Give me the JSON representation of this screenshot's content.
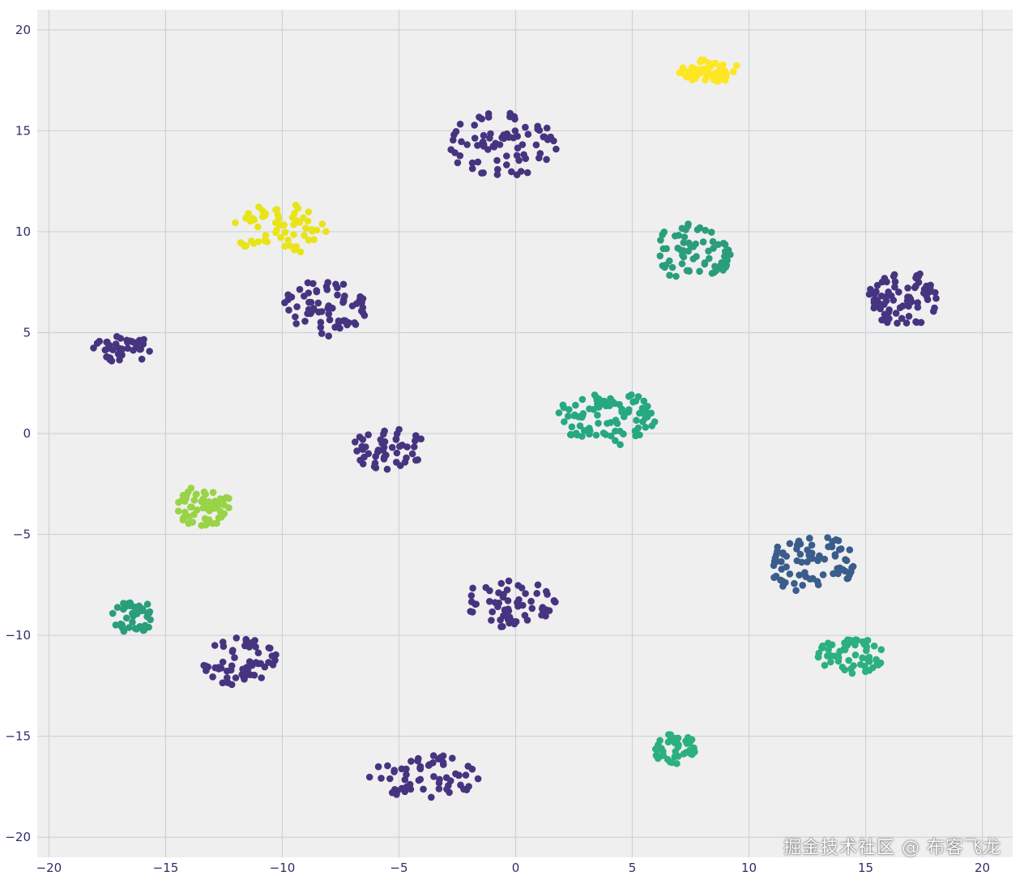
{
  "chart_data": {
    "type": "scatter",
    "title": "",
    "xlabel": "",
    "ylabel": "",
    "xlim": [
      -20.5,
      21.3
    ],
    "ylim": [
      -21.0,
      21.0
    ],
    "x_ticks": [
      -20,
      -15,
      -10,
      -5,
      0,
      5,
      10,
      15,
      20
    ],
    "y_ticks": [
      -20,
      -15,
      -10,
      -5,
      0,
      5,
      10,
      15,
      20
    ],
    "grid": true,
    "background_color": "#efefef",
    "grid_color": "#cfd3d6",
    "colormap": "viridis",
    "clusters": [
      {
        "color": "#463480",
        "center": [
          -0.6,
          14.3
        ],
        "spread": [
          2.4,
          1.6
        ],
        "count": 80
      },
      {
        "color": "#fde725",
        "center": [
          8.3,
          18.0
        ],
        "spread": [
          1.3,
          0.6
        ],
        "count": 60
      },
      {
        "color": "#e8e419",
        "center": [
          -10.1,
          10.1
        ],
        "spread": [
          2.0,
          1.3
        ],
        "count": 60
      },
      {
        "color": "#463480",
        "center": [
          -8.2,
          6.2
        ],
        "spread": [
          1.8,
          1.4
        ],
        "count": 70
      },
      {
        "color": "#2a9d7a",
        "center": [
          7.6,
          9.0
        ],
        "spread": [
          1.8,
          1.4
        ],
        "count": 70
      },
      {
        "color": "#463480",
        "center": [
          16.6,
          6.7
        ],
        "spread": [
          1.5,
          1.4
        ],
        "count": 80
      },
      {
        "color": "#463480",
        "center": [
          -16.8,
          4.2
        ],
        "spread": [
          1.3,
          0.7
        ],
        "count": 40
      },
      {
        "color": "#26a881",
        "center": [
          4.0,
          0.8
        ],
        "spread": [
          2.2,
          1.4
        ],
        "count": 90
      },
      {
        "color": "#463480",
        "center": [
          -5.4,
          -0.8
        ],
        "spread": [
          1.6,
          1.1
        ],
        "count": 50
      },
      {
        "color": "#99d346",
        "center": [
          -13.4,
          -3.6
        ],
        "spread": [
          1.2,
          1.0
        ],
        "count": 60
      },
      {
        "color": "#3a5d8b",
        "center": [
          12.7,
          -6.5
        ],
        "spread": [
          1.9,
          1.5
        ],
        "count": 80
      },
      {
        "color": "#2bb07f",
        "center": [
          14.4,
          -11.0
        ],
        "spread": [
          1.5,
          0.9
        ],
        "count": 60
      },
      {
        "color": "#463480",
        "center": [
          -0.3,
          -8.4
        ],
        "spread": [
          2.0,
          1.2
        ],
        "count": 60
      },
      {
        "color": "#2a9d7a",
        "center": [
          -16.4,
          -9.1
        ],
        "spread": [
          0.9,
          0.9
        ],
        "count": 40
      },
      {
        "color": "#463480",
        "center": [
          -11.8,
          -11.3
        ],
        "spread": [
          1.6,
          1.2
        ],
        "count": 60
      },
      {
        "color": "#2bb07f",
        "center": [
          6.8,
          -15.6
        ],
        "spread": [
          0.9,
          0.8
        ],
        "count": 40
      },
      {
        "color": "#463480",
        "center": [
          -4.0,
          -17.0
        ],
        "spread": [
          2.5,
          1.1
        ],
        "count": 60
      }
    ]
  },
  "watermark": "掘金技术社区 @ 布客飞龙"
}
